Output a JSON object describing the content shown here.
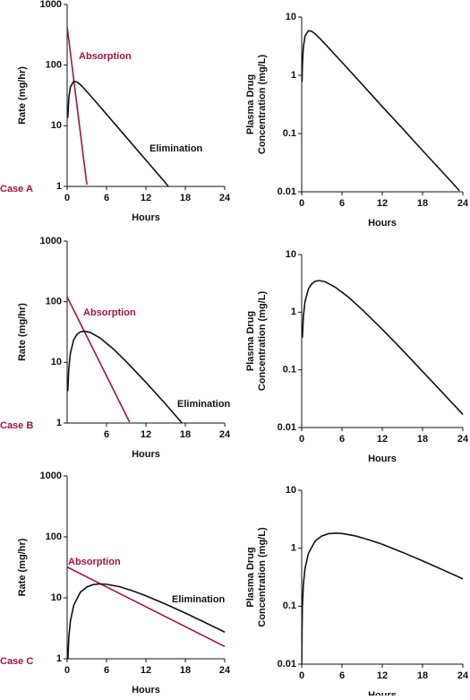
{
  "chart_data": [
    {
      "type": "line",
      "annotation": "Case A",
      "xlabel": "Hours",
      "ylabel": [
        "Rate (mg/hr)"
      ],
      "xlim": [
        0,
        24
      ],
      "xticks": [
        0,
        6,
        12,
        18,
        24
      ],
      "ylim": [
        1,
        1000
      ],
      "yticks": [
        1,
        10,
        100,
        1000
      ],
      "log_y": true,
      "series": [
        {
          "name": "Absorption",
          "color": "#a3143c",
          "x": [
            0,
            3
          ],
          "values": [
            430,
            1.07
          ]
        },
        {
          "name": "Elimination",
          "color": "#111111",
          "x": [
            0.1,
            0.25,
            0.5,
            1,
            1.5,
            2,
            3,
            4,
            6,
            9,
            12,
            15,
            15.4
          ],
          "values": [
            13.5,
            28.5,
            43.8,
            54.1,
            52.7,
            47.8,
            36.7,
            27.6,
            15.5,
            6.48,
            2.72,
            1.14,
            1.0
          ]
        }
      ]
    },
    {
      "type": "line",
      "xlabel": "Hours",
      "ylabel": [
        "Plasma Drug",
        "Concentration (mg/L)"
      ],
      "xlim": [
        0,
        24
      ],
      "xticks": [
        0,
        6,
        12,
        18,
        24
      ],
      "ylim": [
        0.01,
        10
      ],
      "yticks": [
        0.01,
        0.1,
        1,
        10
      ],
      "log_y": true,
      "series": [
        {
          "color": "#111111",
          "x": [
            0.05,
            0.1,
            0.25,
            0.5,
            1,
            1.5,
            2,
            3,
            4,
            6,
            9,
            12,
            15,
            18,
            21,
            23,
            23.5
          ],
          "values": [
            0.77,
            1.45,
            3.07,
            4.72,
            5.82,
            5.68,
            5.15,
            3.96,
            2.98,
            1.67,
            0.7,
            0.29,
            0.123,
            0.051,
            0.0216,
            0.0121,
            0.0104
          ]
        }
      ]
    },
    {
      "type": "line",
      "annotation": "Case B",
      "xlabel": "Hours",
      "ylabel": [
        "Rate (mg/hr)"
      ],
      "xlim": [
        0,
        24
      ],
      "xticks": [
        6,
        12,
        18,
        24
      ],
      "ylim": [
        1,
        1000
      ],
      "yticks": [
        1,
        10,
        100,
        1000
      ],
      "log_y": true,
      "series": [
        {
          "name": "Absorption",
          "color": "#a3143c",
          "x": [
            0,
            9.5
          ],
          "values": [
            120,
            1.04
          ]
        },
        {
          "name": "Elimination",
          "color": "#111111",
          "x": [
            0.1,
            0.25,
            0.5,
            1,
            1.5,
            2,
            2.6,
            3.5,
            5,
            7,
            9,
            12,
            15,
            17.5
          ],
          "values": [
            3.35,
            7.89,
            14.3,
            23.5,
            29.0,
            31.8,
            32.8,
            31.3,
            25.3,
            16.8,
            10.3,
            4.69,
            2.05,
            1.0
          ]
        }
      ]
    },
    {
      "type": "line",
      "xlabel": "Hours",
      "ylabel": [
        "Plasma Drug",
        "Concentration (mg/L)"
      ],
      "xlim": [
        0,
        24
      ],
      "xticks": [
        0,
        6,
        12,
        18,
        24
      ],
      "ylim": [
        0.01,
        10
      ],
      "yticks": [
        0.01,
        0.1,
        1,
        10
      ],
      "log_y": true,
      "series": [
        {
          "color": "#111111",
          "x": [
            0.1,
            0.25,
            0.5,
            1,
            1.5,
            2,
            2.6,
            3.5,
            5,
            7,
            9,
            12,
            15,
            18,
            21,
            24
          ],
          "values": [
            0.36,
            0.85,
            1.54,
            2.53,
            3.12,
            3.43,
            3.54,
            3.37,
            2.72,
            1.81,
            1.11,
            0.505,
            0.221,
            0.094,
            0.04,
            0.0169
          ]
        }
      ]
    },
    {
      "type": "line",
      "annotation": "Case C",
      "xlabel": "Hours",
      "ylabel": [
        "Rate (mg/hr)"
      ],
      "xlim": [
        0,
        24
      ],
      "xticks": [
        0,
        6,
        12,
        18,
        24
      ],
      "ylim": [
        1,
        1000
      ],
      "yticks": [
        1,
        10,
        100,
        1000
      ],
      "log_y": true,
      "series": [
        {
          "name": "Absorption",
          "color": "#a3143c",
          "x": [
            0,
            24
          ],
          "values": [
            32,
            1.59
          ]
        },
        {
          "name": "Elimination",
          "color": "#111111",
          "x": [
            0.1,
            0.25,
            0.5,
            1,
            2,
            3,
            4,
            5,
            6,
            8,
            10,
            12,
            15,
            18,
            21,
            24
          ],
          "values": [
            0.91,
            2.2,
            4.18,
            7.54,
            12.3,
            15.1,
            16.5,
            16.9,
            16.7,
            15.2,
            13.0,
            10.8,
            7.9,
            5.62,
            3.94,
            2.74
          ]
        }
      ]
    },
    {
      "type": "line",
      "xlabel": "Hours",
      "ylabel": [
        "Plasma Drug",
        "Concentration (mg/L)"
      ],
      "xlim": [
        0,
        24
      ],
      "xticks": [
        0,
        6,
        12,
        18,
        24
      ],
      "ylim": [
        0.01,
        10
      ],
      "yticks": [
        0.01,
        0.1,
        1,
        10
      ],
      "log_y": true,
      "series": [
        {
          "color": "#111111",
          "x": [
            0.01,
            0.02,
            0.1,
            0.25,
            0.5,
            1,
            2,
            3,
            4,
            5,
            6,
            8,
            10,
            12,
            15,
            18,
            21,
            24
          ],
          "values": [
            0.01,
            0.02,
            0.098,
            0.237,
            0.451,
            0.813,
            1.33,
            1.63,
            1.78,
            1.82,
            1.8,
            1.63,
            1.4,
            1.17,
            0.851,
            0.606,
            0.425,
            0.296
          ]
        }
      ]
    }
  ]
}
